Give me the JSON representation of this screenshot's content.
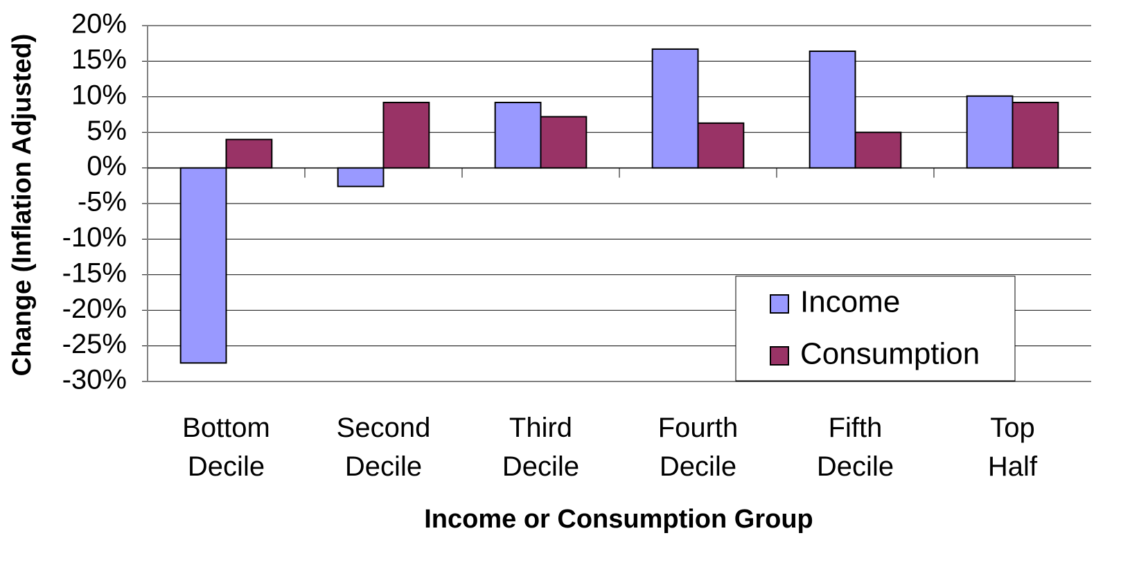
{
  "chart_data": {
    "type": "bar",
    "x_label": "Income or Consumption Group",
    "y_label": "Change (Inflation Adjusted)",
    "categories": [
      "Bottom Decile",
      "Second Decile",
      "Third Decile",
      "Fourth Decile",
      "Fifth Decile",
      "Top Half"
    ],
    "series": [
      {
        "name": "Income",
        "color": "#9999ff",
        "values": [
          -27.4,
          -2.6,
          9.2,
          16.7,
          16.4,
          10.1
        ]
      },
      {
        "name": "Consumption",
        "color": "#993366",
        "values": [
          4.0,
          9.2,
          7.2,
          6.3,
          5.0,
          9.2
        ]
      }
    ],
    "ylim": [
      -30,
      20
    ],
    "yticks": [
      {
        "value": -30,
        "label": "-30%"
      },
      {
        "value": -25,
        "label": "-25%"
      },
      {
        "value": -20,
        "label": "-20%"
      },
      {
        "value": -15,
        "label": "-15%"
      },
      {
        "value": -10,
        "label": "-10%"
      },
      {
        "value": -5,
        "label": "-5%"
      },
      {
        "value": 0,
        "label": "0%"
      },
      {
        "value": 5,
        "label": "5%"
      },
      {
        "value": 10,
        "label": "10%"
      },
      {
        "value": 15,
        "label": "15%"
      },
      {
        "value": 20,
        "label": "20%"
      }
    ],
    "grid": true,
    "legend": "lower right"
  }
}
